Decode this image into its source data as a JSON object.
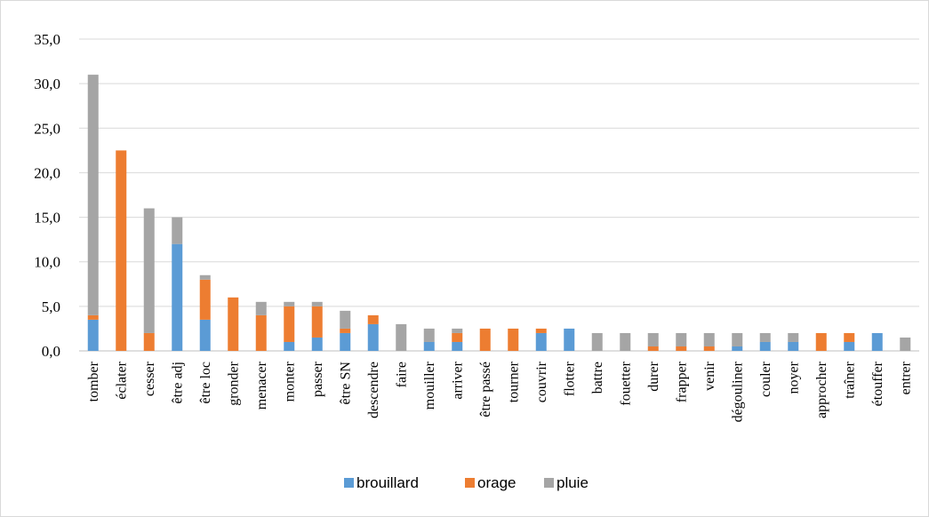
{
  "chart_data": {
    "type": "bar",
    "stacked": true,
    "categories": [
      "tomber",
      "éclater",
      "cesser",
      "être adj",
      "être loc",
      "gronder",
      "menacer",
      "monter",
      "passer",
      "être SN",
      "descendre",
      "faire",
      "mouiller",
      "arriver",
      "être passé",
      "tourner",
      "couvrir",
      "flotter",
      "battre",
      "fouetter",
      "durer",
      "frapper",
      "venir",
      "dégouliner",
      "couler",
      "noyer",
      "approcher",
      "traîner",
      "étouffer",
      "entrer"
    ],
    "series": [
      {
        "name": "brouillard",
        "color": "#5b9bd5",
        "values": [
          3.5,
          0,
          0,
          12,
          3.5,
          0,
          0,
          1,
          1.5,
          2,
          3,
          0,
          1,
          1,
          0,
          0,
          2,
          2.5,
          0,
          0,
          0,
          0,
          0,
          0.5,
          1,
          1,
          0,
          1,
          2,
          0
        ]
      },
      {
        "name": "orage",
        "color": "#ed7d31",
        "values": [
          0.5,
          22.5,
          2,
          0,
          4.5,
          6,
          4,
          4,
          3.5,
          0.5,
          1,
          0,
          0,
          1,
          2.5,
          2.5,
          0.5,
          0,
          0,
          0,
          0.5,
          0.5,
          0.5,
          0,
          0,
          0,
          2,
          1,
          0,
          0
        ]
      },
      {
        "name": "pluie",
        "color": "#a5a5a5",
        "values": [
          27,
          0,
          14,
          3,
          0.5,
          0,
          1.5,
          0.5,
          0.5,
          2,
          0,
          3,
          1.5,
          0.5,
          0,
          0,
          0,
          0,
          2,
          2,
          1.5,
          1.5,
          1.5,
          1.5,
          1,
          1,
          0,
          0,
          0,
          1.5
        ]
      }
    ],
    "yticks": [
      "0,0",
      "5,0",
      "10,0",
      "15,0",
      "20,0",
      "25,0",
      "30,0",
      "35,0"
    ],
    "ylim": [
      0,
      35
    ],
    "ytick_step": 5,
    "grid": true,
    "legend_position": "bottom",
    "title": "",
    "xlabel": "",
    "ylabel": ""
  }
}
